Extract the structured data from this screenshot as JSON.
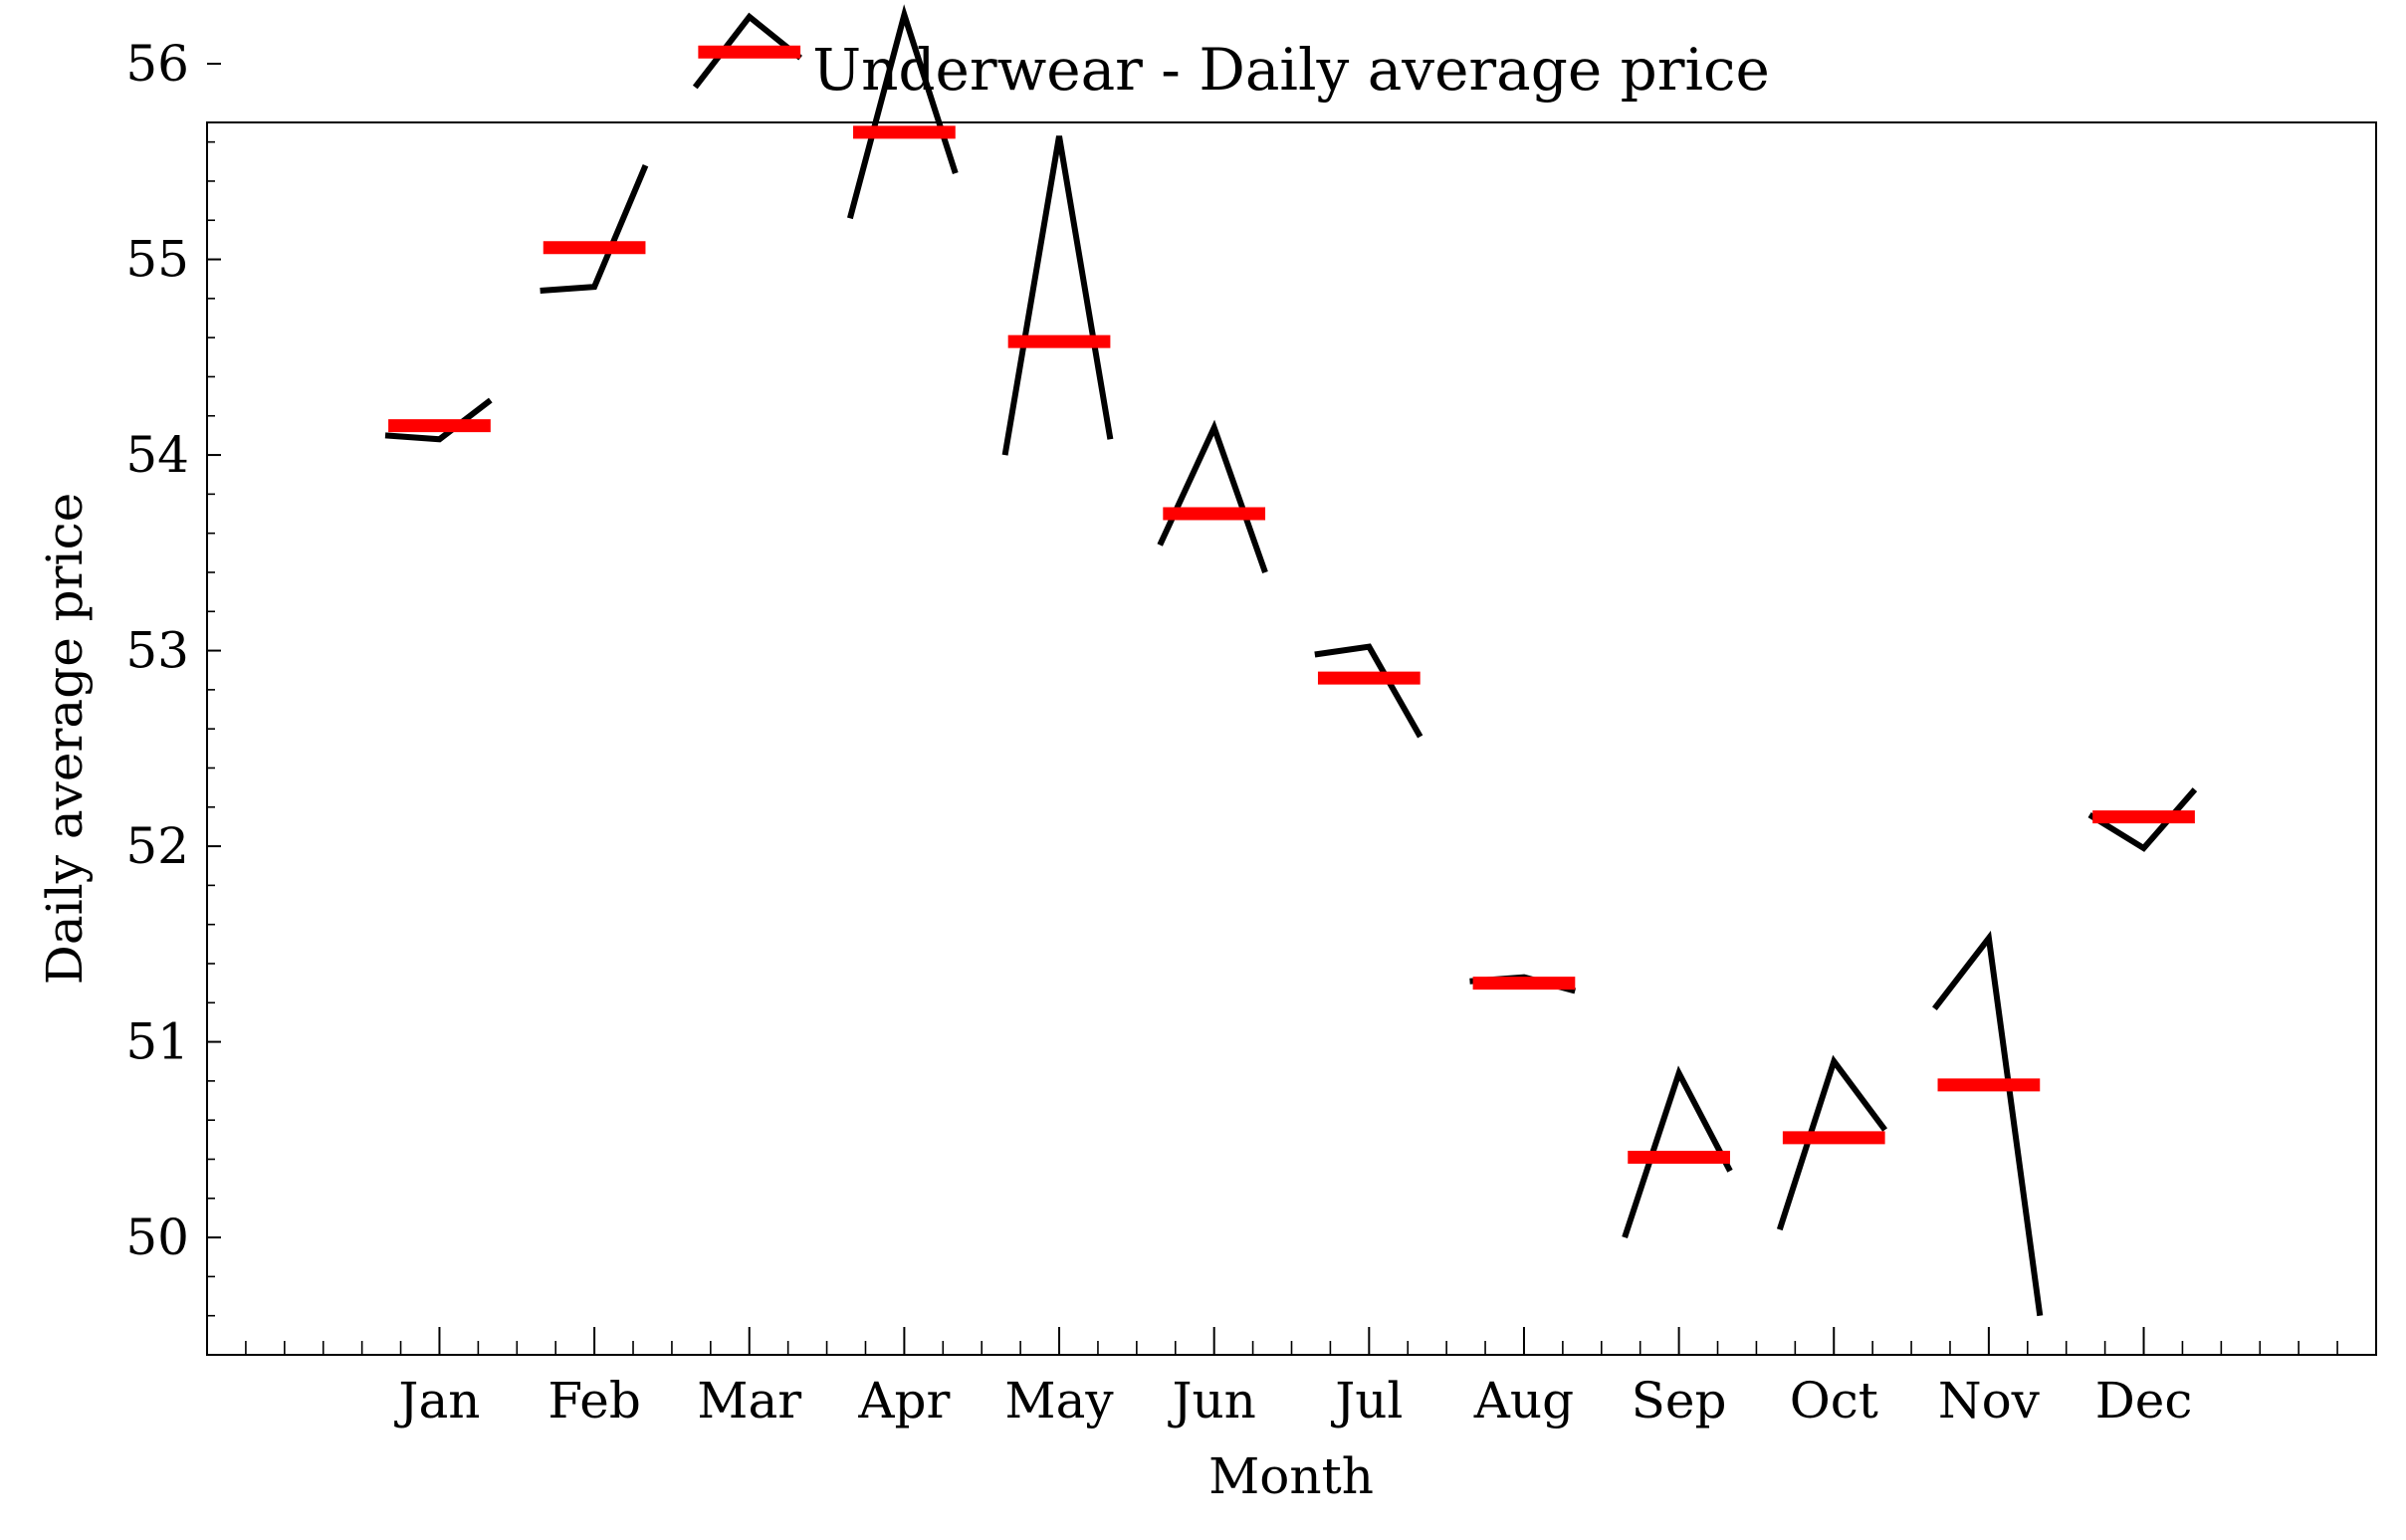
{
  "chart_data": {
    "type": "line",
    "title": "Underwear - Daily average price",
    "xlabel": "Month",
    "ylabel": "Daily average price",
    "categories": [
      "Jan",
      "Feb",
      "Mar",
      "Apr",
      "May",
      "Jun",
      "Jul",
      "Aug",
      "Sep",
      "Oct",
      "Nov",
      "Dec"
    ],
    "ylim": [
      49.4,
      55.7
    ],
    "yticks": [
      50,
      51,
      52,
      53,
      54,
      55,
      56
    ],
    "xlim": [
      -1.5,
      12.5
    ],
    "grid": false,
    "series": [
      {
        "kind": "daily-profile",
        "color": "#000000",
        "segments": [
          [
            54.1,
            54.08,
            54.28
          ],
          [
            54.84,
            54.86,
            55.48
          ],
          [
            55.88,
            56.24,
            56.03
          ],
          [
            55.21,
            56.25,
            55.44
          ],
          [
            54.0,
            55.63,
            54.08
          ],
          [
            53.54,
            54.14,
            53.4
          ],
          [
            52.98,
            53.02,
            52.56
          ],
          [
            51.31,
            51.33,
            51.26
          ],
          [
            50.0,
            50.84,
            50.34
          ],
          [
            50.04,
            50.9,
            50.55
          ],
          [
            51.17,
            51.53,
            49.6
          ],
          [
            52.16,
            51.99,
            52.29
          ]
        ]
      },
      {
        "kind": "monthly-mean",
        "color": "#ff0000",
        "values": [
          54.15,
          55.06,
          56.06,
          55.65,
          54.58,
          53.7,
          52.86,
          51.3,
          50.41,
          50.51,
          50.78,
          52.15
        ]
      }
    ]
  }
}
